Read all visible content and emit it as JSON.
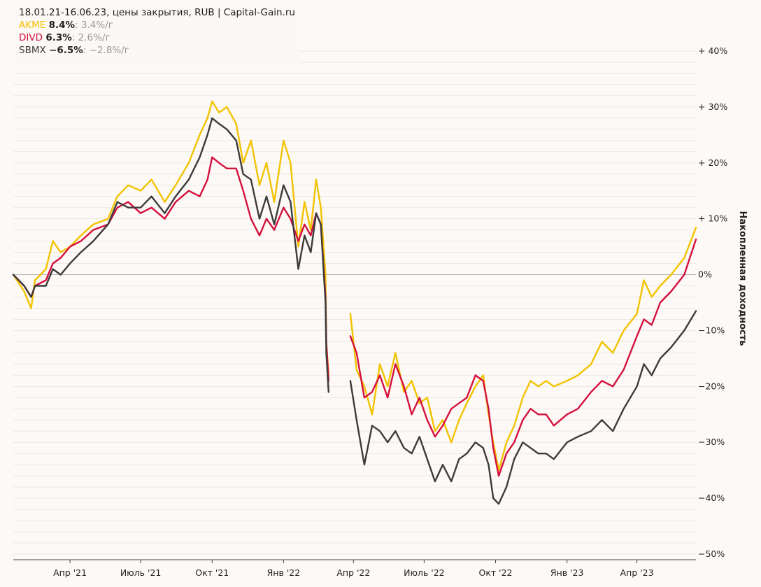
{
  "header": {
    "subtitle": "18.01.21-16.06.23, цены закрытия, RUB | Capital-Gain.ru"
  },
  "legend": [
    {
      "name": "AKME",
      "total": "8.4%",
      "annual": ": 3.4%/г",
      "color": "#f2c300"
    },
    {
      "name": "DIVD",
      "total": "6.3%",
      "annual": ": 2.6%/г",
      "color": "#d4103c"
    },
    {
      "name": "SBMX",
      "total": "−6.5%",
      "annual": ": −2.8%/г",
      "color": "#3c3c3c"
    }
  ],
  "chart_data": {
    "type": "line",
    "title": "18.01.21-16.06.23, цены закрытия, RUB | Capital-Gain.ru",
    "ylabel": "Накопленная доходность",
    "ylim": [
      -50,
      40
    ],
    "grid": true,
    "legend_position": "top-left",
    "y_tick_labels": [
      "+ 40%",
      "+ 30%",
      "+ 20%",
      "+ 10%",
      "0%",
      "−10%",
      "−20%",
      "−30%",
      "−40%",
      "−50%"
    ],
    "y_ticks": [
      40,
      30,
      20,
      10,
      0,
      -10,
      -20,
      -30,
      -40,
      -50
    ],
    "x_tick_labels": [
      "Апр '21",
      "Июль '21",
      "Окт '21",
      "Янв '22",
      "Апр '22",
      "Июль '22",
      "Окт '22",
      "Янв '23",
      "Апр '23"
    ],
    "x_ticks": [
      "2021-04-01",
      "2021-07-01",
      "2021-10-01",
      "2022-01-01",
      "2022-04-01",
      "2022-07-01",
      "2022-10-01",
      "2023-01-01",
      "2023-04-01"
    ],
    "x_range": [
      "2021-01-18",
      "2023-06-16"
    ],
    "series": [
      {
        "name": "AKME",
        "color": "#f2c300",
        "points": [
          [
            "2021-01-18",
            0
          ],
          [
            "2021-02-01",
            -3
          ],
          [
            "2021-02-10",
            -6
          ],
          [
            "2021-02-15",
            -1
          ],
          [
            "2021-03-01",
            1
          ],
          [
            "2021-03-10",
            6
          ],
          [
            "2021-03-20",
            4
          ],
          [
            "2021-04-01",
            5
          ],
          [
            "2021-04-15",
            7
          ],
          [
            "2021-05-01",
            9
          ],
          [
            "2021-05-20",
            10
          ],
          [
            "2021-06-01",
            14
          ],
          [
            "2021-06-15",
            16
          ],
          [
            "2021-07-01",
            15
          ],
          [
            "2021-07-15",
            17
          ],
          [
            "2021-08-01",
            13
          ],
          [
            "2021-08-15",
            16
          ],
          [
            "2021-09-01",
            20
          ],
          [
            "2021-09-15",
            25
          ],
          [
            "2021-09-25",
            28
          ],
          [
            "2021-10-01",
            31
          ],
          [
            "2021-10-10",
            29
          ],
          [
            "2021-10-20",
            30
          ],
          [
            "2021-11-01",
            27
          ],
          [
            "2021-11-10",
            20
          ],
          [
            "2021-11-20",
            24
          ],
          [
            "2021-12-01",
            16
          ],
          [
            "2021-12-10",
            20
          ],
          [
            "2021-12-20",
            13
          ],
          [
            "2022-01-01",
            24
          ],
          [
            "2022-01-10",
            20
          ],
          [
            "2022-01-20",
            5
          ],
          [
            "2022-01-28",
            13
          ],
          [
            "2022-02-05",
            8
          ],
          [
            "2022-02-12",
            17
          ],
          [
            "2022-02-18",
            12
          ],
          [
            "2022-02-24",
            0
          ],
          [
            "2022-02-25",
            -12
          ],
          [
            "2022-02-28",
            -18
          ],
          [
            "2022-03-24",
            null
          ],
          [
            "2022-03-28",
            -7
          ],
          [
            "2022-04-05",
            -17
          ],
          [
            "2022-04-15",
            -20
          ],
          [
            "2022-04-25",
            -25
          ],
          [
            "2022-05-05",
            -16
          ],
          [
            "2022-05-15",
            -20
          ],
          [
            "2022-05-25",
            -14
          ],
          [
            "2022-06-05",
            -21
          ],
          [
            "2022-06-15",
            -19
          ],
          [
            "2022-06-25",
            -23
          ],
          [
            "2022-07-05",
            -22
          ],
          [
            "2022-07-15",
            -28
          ],
          [
            "2022-07-25",
            -26
          ],
          [
            "2022-08-05",
            -30
          ],
          [
            "2022-08-15",
            -26
          ],
          [
            "2022-08-25",
            -23
          ],
          [
            "2022-09-05",
            -20
          ],
          [
            "2022-09-15",
            -18
          ],
          [
            "2022-09-22",
            -25
          ],
          [
            "2022-09-28",
            -30
          ],
          [
            "2022-10-05",
            -35
          ],
          [
            "2022-10-15",
            -30
          ],
          [
            "2022-10-25",
            -27
          ],
          [
            "2022-11-05",
            -22
          ],
          [
            "2022-11-15",
            -19
          ],
          [
            "2022-11-25",
            -20
          ],
          [
            "2022-12-05",
            -19
          ],
          [
            "2022-12-15",
            -20
          ],
          [
            "2023-01-01",
            -19
          ],
          [
            "2023-01-15",
            -18
          ],
          [
            "2023-02-01",
            -16
          ],
          [
            "2023-02-15",
            -12
          ],
          [
            "2023-03-01",
            -14
          ],
          [
            "2023-03-15",
            -10
          ],
          [
            "2023-04-01",
            -7
          ],
          [
            "2023-04-10",
            -1
          ],
          [
            "2023-04-20",
            -4
          ],
          [
            "2023-05-01",
            -2
          ],
          [
            "2023-05-15",
            0
          ],
          [
            "2023-06-01",
            3
          ],
          [
            "2023-06-16",
            8.4
          ]
        ]
      },
      {
        "name": "DIVD",
        "color": "#d4103c",
        "points": [
          [
            "2021-01-18",
            0
          ],
          [
            "2021-02-01",
            -2
          ],
          [
            "2021-02-10",
            -4
          ],
          [
            "2021-02-15",
            -2
          ],
          [
            "2021-03-01",
            -1
          ],
          [
            "2021-03-10",
            2
          ],
          [
            "2021-03-20",
            3
          ],
          [
            "2021-04-01",
            5
          ],
          [
            "2021-04-15",
            6
          ],
          [
            "2021-05-01",
            8
          ],
          [
            "2021-05-20",
            9
          ],
          [
            "2021-06-01",
            12
          ],
          [
            "2021-06-15",
            13
          ],
          [
            "2021-07-01",
            11
          ],
          [
            "2021-07-15",
            12
          ],
          [
            "2021-08-01",
            10
          ],
          [
            "2021-08-15",
            13
          ],
          [
            "2021-09-01",
            15
          ],
          [
            "2021-09-15",
            14
          ],
          [
            "2021-09-25",
            17
          ],
          [
            "2021-10-01",
            21
          ],
          [
            "2021-10-10",
            20
          ],
          [
            "2021-10-20",
            19
          ],
          [
            "2021-11-01",
            19
          ],
          [
            "2021-11-10",
            15
          ],
          [
            "2021-11-20",
            10
          ],
          [
            "2021-12-01",
            7
          ],
          [
            "2021-12-10",
            10
          ],
          [
            "2021-12-20",
            8
          ],
          [
            "2022-01-01",
            12
          ],
          [
            "2022-01-10",
            10
          ],
          [
            "2022-01-20",
            6
          ],
          [
            "2022-01-28",
            9
          ],
          [
            "2022-02-05",
            7
          ],
          [
            "2022-02-12",
            11
          ],
          [
            "2022-02-18",
            9
          ],
          [
            "2022-02-24",
            -4
          ],
          [
            "2022-02-25",
            -12
          ],
          [
            "2022-02-28",
            -19
          ],
          [
            "2022-03-24",
            null
          ],
          [
            "2022-03-28",
            -11
          ],
          [
            "2022-04-05",
            -14
          ],
          [
            "2022-04-15",
            -22
          ],
          [
            "2022-04-25",
            -21
          ],
          [
            "2022-05-05",
            -18
          ],
          [
            "2022-05-15",
            -22
          ],
          [
            "2022-05-25",
            -16
          ],
          [
            "2022-06-05",
            -20
          ],
          [
            "2022-06-15",
            -25
          ],
          [
            "2022-06-25",
            -22
          ],
          [
            "2022-07-05",
            -26
          ],
          [
            "2022-07-15",
            -29
          ],
          [
            "2022-07-25",
            -27
          ],
          [
            "2022-08-05",
            -24
          ],
          [
            "2022-08-15",
            -23
          ],
          [
            "2022-08-25",
            -22
          ],
          [
            "2022-09-05",
            -18
          ],
          [
            "2022-09-15",
            -19
          ],
          [
            "2022-09-22",
            -24
          ],
          [
            "2022-09-28",
            -31
          ],
          [
            "2022-10-05",
            -36
          ],
          [
            "2022-10-15",
            -32
          ],
          [
            "2022-10-25",
            -30
          ],
          [
            "2022-11-05",
            -26
          ],
          [
            "2022-11-15",
            -24
          ],
          [
            "2022-11-25",
            -25
          ],
          [
            "2022-12-05",
            -25
          ],
          [
            "2022-12-15",
            -27
          ],
          [
            "2023-01-01",
            -25
          ],
          [
            "2023-01-15",
            -24
          ],
          [
            "2023-02-01",
            -21
          ],
          [
            "2023-02-15",
            -19
          ],
          [
            "2023-03-01",
            -20
          ],
          [
            "2023-03-15",
            -17
          ],
          [
            "2023-04-01",
            -11
          ],
          [
            "2023-04-10",
            -8
          ],
          [
            "2023-04-20",
            -9
          ],
          [
            "2023-05-01",
            -5
          ],
          [
            "2023-05-15",
            -3
          ],
          [
            "2023-06-01",
            0
          ],
          [
            "2023-06-16",
            6.3
          ]
        ]
      },
      {
        "name": "SBMX",
        "color": "#3c3c3c",
        "points": [
          [
            "2021-01-18",
            0
          ],
          [
            "2021-02-01",
            -2
          ],
          [
            "2021-02-10",
            -4
          ],
          [
            "2021-02-15",
            -2
          ],
          [
            "2021-03-01",
            -2
          ],
          [
            "2021-03-10",
            1
          ],
          [
            "2021-03-20",
            0
          ],
          [
            "2021-04-01",
            2
          ],
          [
            "2021-04-15",
            4
          ],
          [
            "2021-05-01",
            6
          ],
          [
            "2021-05-20",
            9
          ],
          [
            "2021-06-01",
            13
          ],
          [
            "2021-06-15",
            12
          ],
          [
            "2021-07-01",
            12
          ],
          [
            "2021-07-15",
            14
          ],
          [
            "2021-08-01",
            11
          ],
          [
            "2021-08-15",
            14
          ],
          [
            "2021-09-01",
            17
          ],
          [
            "2021-09-15",
            21
          ],
          [
            "2021-09-25",
            25
          ],
          [
            "2021-10-01",
            28
          ],
          [
            "2021-10-10",
            27
          ],
          [
            "2021-10-20",
            26
          ],
          [
            "2021-11-01",
            24
          ],
          [
            "2021-11-10",
            18
          ],
          [
            "2021-11-20",
            17
          ],
          [
            "2021-12-01",
            10
          ],
          [
            "2021-12-10",
            14
          ],
          [
            "2021-12-20",
            9
          ],
          [
            "2022-01-01",
            16
          ],
          [
            "2022-01-10",
            13
          ],
          [
            "2022-01-20",
            1
          ],
          [
            "2022-01-28",
            7
          ],
          [
            "2022-02-05",
            4
          ],
          [
            "2022-02-12",
            11
          ],
          [
            "2022-02-18",
            9
          ],
          [
            "2022-02-24",
            -5
          ],
          [
            "2022-02-25",
            -14
          ],
          [
            "2022-02-28",
            -21
          ],
          [
            "2022-03-24",
            null
          ],
          [
            "2022-03-28",
            -19
          ],
          [
            "2022-04-05",
            -26
          ],
          [
            "2022-04-15",
            -34
          ],
          [
            "2022-04-25",
            -27
          ],
          [
            "2022-05-05",
            -28
          ],
          [
            "2022-05-15",
            -30
          ],
          [
            "2022-05-25",
            -28
          ],
          [
            "2022-06-05",
            -31
          ],
          [
            "2022-06-15",
            -32
          ],
          [
            "2022-06-25",
            -29
          ],
          [
            "2022-07-05",
            -33
          ],
          [
            "2022-07-15",
            -37
          ],
          [
            "2022-07-25",
            -34
          ],
          [
            "2022-08-05",
            -37
          ],
          [
            "2022-08-15",
            -33
          ],
          [
            "2022-08-25",
            -32
          ],
          [
            "2022-09-05",
            -30
          ],
          [
            "2022-09-15",
            -31
          ],
          [
            "2022-09-22",
            -34
          ],
          [
            "2022-09-28",
            -40
          ],
          [
            "2022-10-05",
            -41
          ],
          [
            "2022-10-15",
            -38
          ],
          [
            "2022-10-25",
            -33
          ],
          [
            "2022-11-05",
            -30
          ],
          [
            "2022-11-15",
            -31
          ],
          [
            "2022-11-25",
            -32
          ],
          [
            "2022-12-05",
            -32
          ],
          [
            "2022-12-15",
            -33
          ],
          [
            "2023-01-01",
            -30
          ],
          [
            "2023-01-15",
            -29
          ],
          [
            "2023-02-01",
            -28
          ],
          [
            "2023-02-15",
            -26
          ],
          [
            "2023-03-01",
            -28
          ],
          [
            "2023-03-15",
            -24
          ],
          [
            "2023-04-01",
            -20
          ],
          [
            "2023-04-10",
            -16
          ],
          [
            "2023-04-20",
            -18
          ],
          [
            "2023-05-01",
            -15
          ],
          [
            "2023-05-15",
            -13
          ],
          [
            "2023-06-01",
            -10
          ],
          [
            "2023-06-16",
            -6.5
          ]
        ]
      }
    ]
  }
}
